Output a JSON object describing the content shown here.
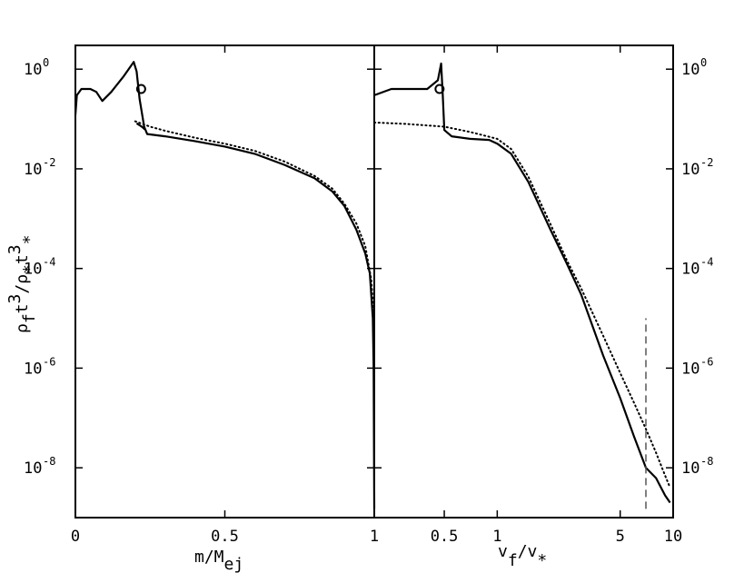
{
  "chart_data": [
    {
      "type": "line",
      "panel": "left",
      "xlabel": "m/M",
      "xlabel_subscript": "ej",
      "ylabel": {
        "text": "ρ",
        "sub1": "f",
        "mid1": "t",
        "sup1": "3",
        "mid2": "/ρ",
        "sub2": "*",
        "mid3": "t",
        "sup2": "3",
        "sub3": "*"
      },
      "x_scale": "linear",
      "y_scale": "log",
      "xlim": [
        0,
        1
      ],
      "ylim": [
        1e-09,
        3
      ],
      "x_ticks": [
        {
          "value": 0,
          "label": "0"
        },
        {
          "value": 0.5,
          "label": "0.5"
        },
        {
          "value": 1,
          "label": "1"
        }
      ],
      "y_ticks": [
        {
          "value": 1,
          "base": "10",
          "exp": "0"
        },
        {
          "value": 0.01,
          "base": "10",
          "exp": "-2"
        },
        {
          "value": 0.0001,
          "base": "10",
          "exp": "-4"
        },
        {
          "value": 1e-06,
          "base": "10",
          "exp": "-6"
        },
        {
          "value": 1e-08,
          "base": "10",
          "exp": "-8"
        }
      ],
      "series": [
        {
          "style": "solid",
          "points": [
            [
              0.0,
              0.12
            ],
            [
              0.005,
              0.3
            ],
            [
              0.02,
              0.4
            ],
            [
              0.05,
              0.4
            ],
            [
              0.07,
              0.35
            ],
            [
              0.09,
              0.23
            ],
            [
              0.12,
              0.35
            ],
            [
              0.16,
              0.7
            ],
            [
              0.195,
              1.4
            ],
            [
              0.205,
              0.9
            ],
            [
              0.215,
              0.25
            ],
            [
              0.23,
              0.07
            ],
            [
              0.24,
              0.05
            ],
            [
              0.3,
              0.045
            ],
            [
              0.4,
              0.036
            ],
            [
              0.5,
              0.028
            ],
            [
              0.6,
              0.02
            ],
            [
              0.7,
              0.012
            ],
            [
              0.8,
              0.0065
            ],
            [
              0.86,
              0.0035
            ],
            [
              0.9,
              0.0018
            ],
            [
              0.94,
              0.0006
            ],
            [
              0.97,
              0.0002
            ],
            [
              0.985,
              8e-05
            ],
            [
              0.995,
              1e-05
            ],
            [
              0.998,
              1e-06
            ],
            [
              1.0,
              1.5e-09
            ]
          ]
        },
        {
          "style": "solid",
          "points": [
            [
              0.205,
              0.082
            ],
            [
              0.215,
              0.075
            ],
            [
              0.225,
              0.068
            ],
            [
              0.232,
              0.062
            ]
          ]
        },
        {
          "style": "dotted",
          "points": [
            [
              0.2,
              0.09
            ],
            [
              0.25,
              0.07
            ],
            [
              0.3,
              0.058
            ],
            [
              0.4,
              0.042
            ],
            [
              0.5,
              0.032
            ],
            [
              0.6,
              0.023
            ],
            [
              0.7,
              0.014
            ],
            [
              0.8,
              0.0072
            ],
            [
              0.86,
              0.004
            ],
            [
              0.9,
              0.002
            ],
            [
              0.94,
              0.0008
            ],
            [
              0.97,
              0.00028
            ],
            [
              0.99,
              6e-05
            ],
            [
              0.999,
              1e-05
            ]
          ]
        }
      ],
      "markers": [
        {
          "x": 0.22,
          "y": 0.4,
          "symbol": "open-circle"
        }
      ]
    },
    {
      "type": "line",
      "panel": "right",
      "xlabel": "v",
      "xlabel_subscript": "f",
      "xlabel_rest": "/v",
      "xlabel_subscript2": "*",
      "x_scale": "log",
      "y_scale": "log",
      "xlim": [
        0.2,
        10
      ],
      "ylim": [
        1e-09,
        3
      ],
      "x_ticks": [
        {
          "value": 0.5,
          "label": "0.5"
        },
        {
          "value": 1,
          "label": "1"
        },
        {
          "value": 5,
          "label": "5"
        },
        {
          "value": 10,
          "label": "10"
        }
      ],
      "y_ticks": [
        {
          "value": 1,
          "base": "10",
          "exp": "0"
        },
        {
          "value": 0.01,
          "base": "10",
          "exp": "-2"
        },
        {
          "value": 0.0001,
          "base": "10",
          "exp": "-4"
        },
        {
          "value": 1e-06,
          "base": "10",
          "exp": "-6"
        },
        {
          "value": 1e-08,
          "base": "10",
          "exp": "-8"
        }
      ],
      "series": [
        {
          "style": "solid",
          "points": [
            [
              0.2,
              0.3
            ],
            [
              0.25,
              0.4
            ],
            [
              0.3,
              0.4
            ],
            [
              0.4,
              0.4
            ],
            [
              0.46,
              0.6
            ],
            [
              0.48,
              1.3
            ],
            [
              0.49,
              0.3
            ],
            [
              0.5,
              0.06
            ],
            [
              0.55,
              0.045
            ],
            [
              0.7,
              0.04
            ],
            [
              0.9,
              0.038
            ],
            [
              1.0,
              0.032
            ],
            [
              1.2,
              0.02
            ],
            [
              1.5,
              0.0055
            ],
            [
              2.0,
              0.00062
            ],
            [
              2.5,
              0.00012
            ],
            [
              3.0,
              3e-05
            ],
            [
              4.0,
              1.8e-06
            ],
            [
              5.0,
              2.5e-07
            ],
            [
              6.0,
              4.2e-08
            ],
            [
              7.0,
              1e-08
            ],
            [
              8.0,
              6.2e-09
            ],
            [
              9.0,
              2.8e-09
            ],
            [
              9.6,
              2e-09
            ]
          ]
        },
        {
          "style": "dotted",
          "points": [
            [
              0.2,
              0.085
            ],
            [
              0.3,
              0.08
            ],
            [
              0.5,
              0.07
            ],
            [
              0.7,
              0.055
            ],
            [
              1.0,
              0.04
            ],
            [
              1.2,
              0.025
            ],
            [
              1.5,
              0.007
            ],
            [
              2.0,
              0.0008
            ],
            [
              2.5,
              0.00014
            ],
            [
              3.0,
              4e-05
            ],
            [
              4.0,
              4.5e-06
            ],
            [
              5.0,
              8e-07
            ],
            [
              6.0,
              2e-07
            ],
            [
              7.0,
              6e-08
            ],
            [
              8.0,
              2e-08
            ],
            [
              9.0,
              7e-09
            ],
            [
              9.6,
              4e-09
            ]
          ]
        }
      ],
      "markers": [
        {
          "x": 0.47,
          "y": 0.4,
          "symbol": "open-circle"
        }
      ],
      "vlines": [
        {
          "x": 7.0,
          "y_from": 1.5e-09,
          "y_to": 1e-05,
          "style": "dashed"
        }
      ]
    }
  ],
  "style": {
    "line_color": "#000000",
    "dashed_color": "#555555",
    "background": "#ffffff"
  }
}
